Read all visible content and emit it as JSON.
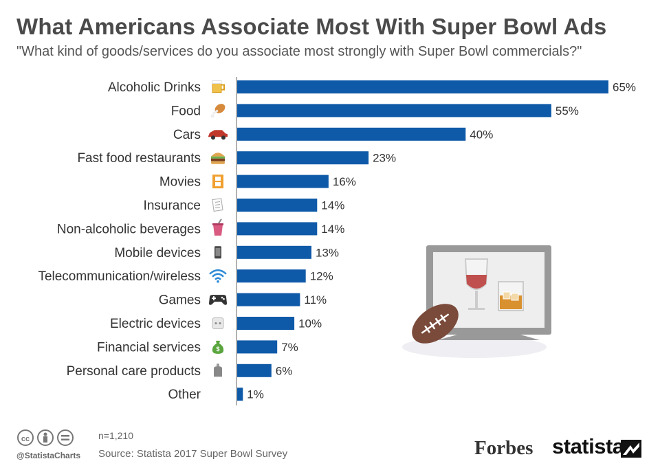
{
  "title": "What Americans Associate Most With Super Bowl Ads",
  "subtitle": "\"What kind of goods/services do you associate most strongly with Super Bowl commercials?\"",
  "colors": {
    "bar": "#0f5aa8",
    "axis": "#999999",
    "text": "#333333"
  },
  "chart_data": {
    "type": "bar",
    "orientation": "horizontal",
    "categories": [
      "Alcoholic Drinks",
      "Food",
      "Cars",
      "Fast food restaurants",
      "Movies",
      "Insurance",
      "Non-alcoholic beverages",
      "Mobile devices",
      "Telecommunication/wireless",
      "Games",
      "Electric devices",
      "Financial services",
      "Personal care products",
      "Other"
    ],
    "values": [
      65,
      55,
      40,
      23,
      16,
      14,
      14,
      13,
      12,
      11,
      10,
      7,
      6,
      1
    ],
    "value_labels": [
      "65%",
      "55%",
      "40%",
      "23%",
      "16%",
      "14%",
      "14%",
      "13%",
      "12%",
      "11%",
      "10%",
      "7%",
      "6%",
      "1%"
    ],
    "icons": [
      "beer-mug-icon",
      "chicken-leg-icon",
      "car-icon",
      "burger-icon",
      "film-strip-icon",
      "document-icon",
      "soda-cup-icon",
      "phone-icon",
      "wifi-icon",
      "gamepad-icon",
      "electric-socket-icon",
      "money-bag-icon",
      "bottle-icon",
      ""
    ],
    "xlim": [
      0,
      65
    ],
    "grid": false,
    "legend": "none"
  },
  "footer": {
    "sample": "n=1,210",
    "handle": "@StatistaCharts",
    "source": "Source: Statista 2017 Super Bowl Survey",
    "forbes": "Forbes",
    "statista": "statista"
  }
}
